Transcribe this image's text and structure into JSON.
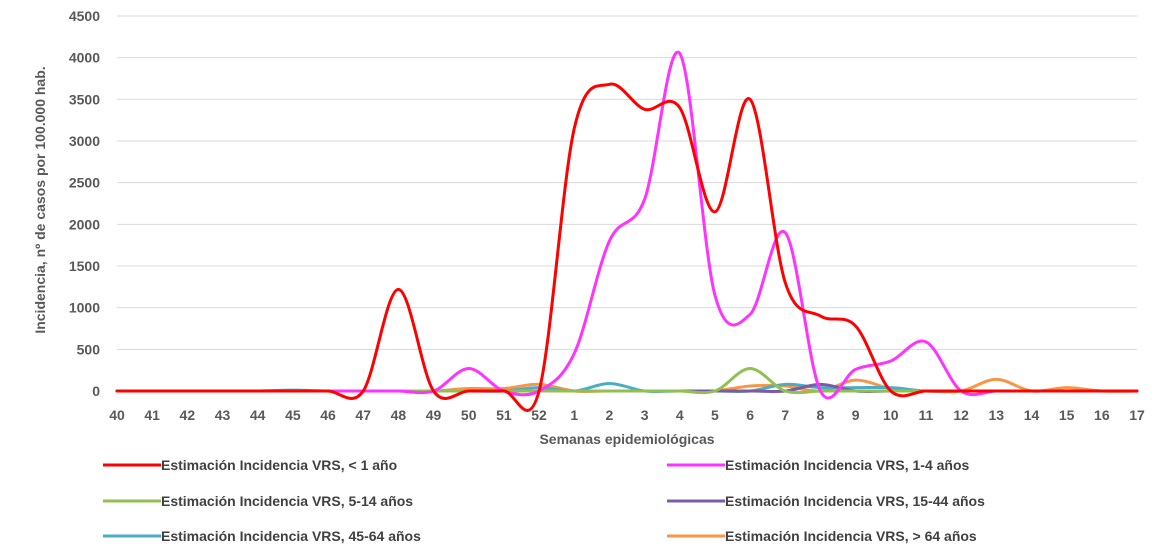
{
  "chart_data": {
    "type": "line",
    "title": "",
    "xlabel": "Semanas epidemiológicas",
    "ylabel": "Incidencia, nº de casos por 100.000 hab.",
    "ylim": [
      0,
      4500
    ],
    "yticks": [
      0,
      500,
      1000,
      1500,
      2000,
      2500,
      3000,
      3500,
      4000,
      4500
    ],
    "categories": [
      "40",
      "41",
      "42",
      "43",
      "44",
      "45",
      "46",
      "47",
      "48",
      "49",
      "50",
      "51",
      "52",
      "1",
      "2",
      "3",
      "4",
      "5",
      "6",
      "7",
      "8",
      "9",
      "10",
      "11",
      "12",
      "13",
      "14",
      "15",
      "16",
      "17"
    ],
    "grid": "horizontal",
    "legend_position": "bottom",
    "series": [
      {
        "name": "Estimación Incidencia VRS, < 1 año",
        "color": "#ff0000",
        "values": [
          0,
          0,
          0,
          0,
          0,
          0,
          0,
          0,
          1220,
          0,
          0,
          0,
          0,
          3150,
          3680,
          3380,
          3400,
          2150,
          3500,
          1300,
          900,
          780,
          0,
          0,
          0,
          0,
          0,
          0,
          0,
          0
        ]
      },
      {
        "name": "Estimación Incidencia VRS, 1-4 años",
        "color": "#ff33ff",
        "values": [
          0,
          0,
          0,
          0,
          0,
          0,
          0,
          0,
          0,
          0,
          270,
          0,
          0,
          450,
          1800,
          2300,
          4050,
          1150,
          920,
          1900,
          0,
          260,
          360,
          590,
          0,
          0,
          0,
          0,
          0,
          0
        ]
      },
      {
        "name": "Estimación Incidencia VRS, 5-14 años",
        "color": "#92c050",
        "values": [
          0,
          0,
          0,
          0,
          0,
          0,
          0,
          0,
          0,
          0,
          0,
          0,
          0,
          0,
          0,
          0,
          0,
          0,
          270,
          0,
          0,
          0,
          0,
          0,
          0,
          0,
          0,
          0,
          0,
          0
        ]
      },
      {
        "name": "Estimación Incidencia VRS, 15-44 años",
        "color": "#7a5ba5",
        "values": [
          0,
          0,
          0,
          0,
          0,
          0,
          0,
          0,
          0,
          0,
          0,
          0,
          0,
          0,
          0,
          0,
          0,
          0,
          0,
          0,
          80,
          0,
          0,
          0,
          0,
          0,
          0,
          0,
          0,
          0
        ]
      },
      {
        "name": "Estimación Incidencia VRS, 45-64 años",
        "color": "#4bacc6",
        "values": [
          0,
          0,
          0,
          0,
          0,
          10,
          0,
          0,
          0,
          0,
          0,
          0,
          40,
          0,
          90,
          0,
          0,
          0,
          0,
          80,
          40,
          40,
          40,
          0,
          0,
          0,
          0,
          0,
          0,
          0
        ]
      },
      {
        "name": "Estimación Incidencia VRS, > 64 años",
        "color": "#f79646",
        "values": [
          0,
          0,
          0,
          0,
          0,
          0,
          0,
          0,
          0,
          0,
          30,
          30,
          80,
          0,
          0,
          0,
          0,
          0,
          60,
          60,
          0,
          130,
          30,
          0,
          0,
          140,
          0,
          40,
          0,
          0
        ]
      }
    ]
  }
}
